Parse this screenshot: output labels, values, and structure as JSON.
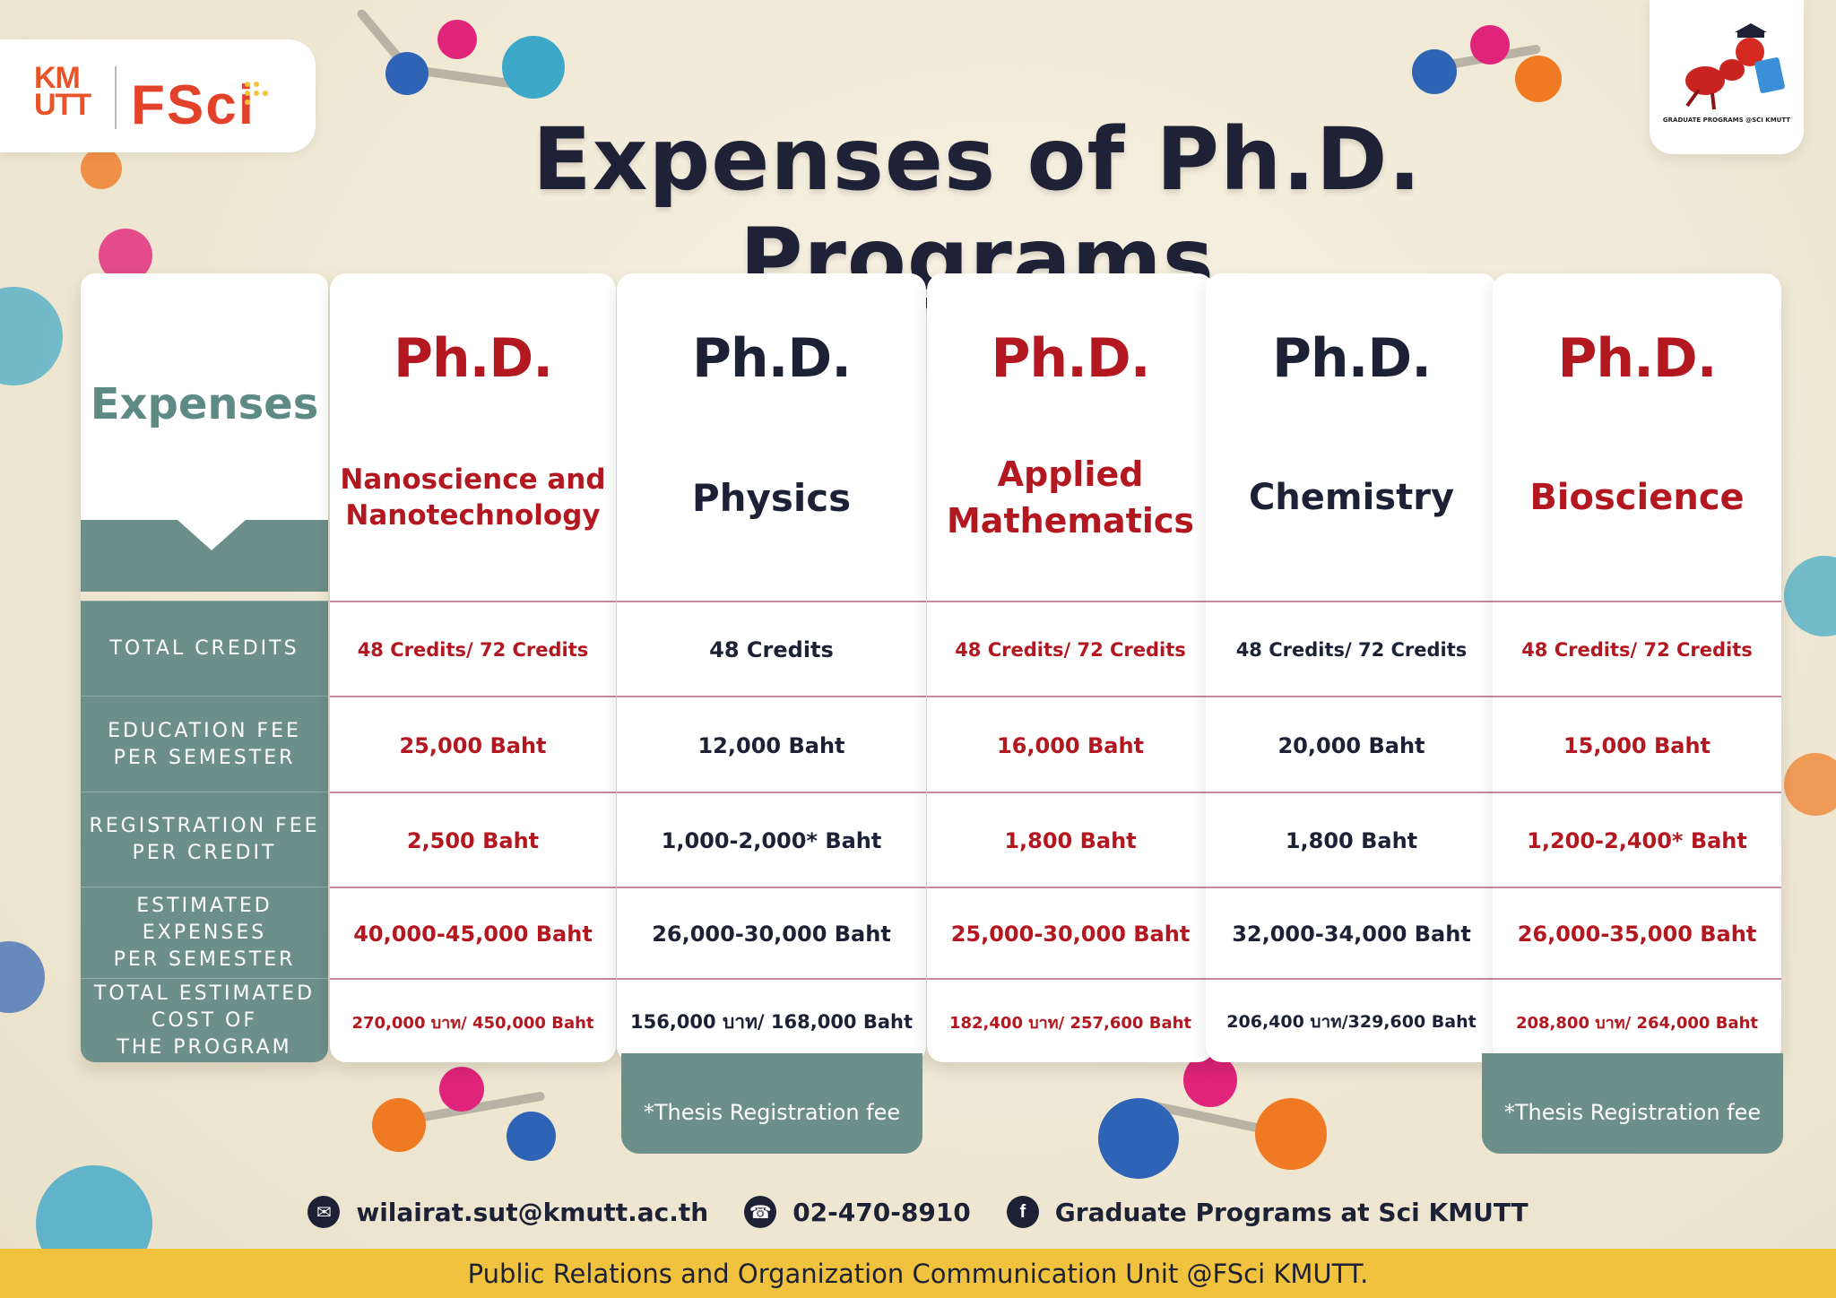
{
  "logos": {
    "kmutt_text": "KM\nUTT",
    "fsci_text": "FSci",
    "badge_text": "GRADUATE PROGRAMS @SCI KMUTT"
  },
  "title": "Expenses of Ph.D. Programs",
  "label_header": "Expenses",
  "row_labels": [
    "TOTAL CREDITS",
    "EDUCATION FEE\nPER SEMESTER",
    "REGISTRATION FEE\nPER CREDIT",
    "ESTIMATED\nEXPENSES\nPER SEMESTER",
    "TOTAL ESTIMATED\nCOST OF\nTHE PROGRAM"
  ],
  "programs": [
    {
      "degree": "Ph.D.",
      "name": "Nanoscience and\nNanotechnology",
      "color": "#b3171f",
      "total_credits": "48 Credits/ 72 Credits",
      "education_fee": "25,000 Baht",
      "registration_fee": "2,500 Baht",
      "estimated_expenses": "40,000-45,000 Baht",
      "total_cost": "270,000 บาท/ 450,000 Baht"
    },
    {
      "degree": "Ph.D.",
      "name": "Physics",
      "color": "#1d2135",
      "total_credits": "48 Credits",
      "education_fee": "12,000 Baht",
      "registration_fee": "1,000-2,000* Baht",
      "estimated_expenses": "26,000-30,000 Baht",
      "total_cost": "156,000 บาท/ 168,000 Baht"
    },
    {
      "degree": "Ph.D.",
      "name": "Applied\nMathematics",
      "color": "#b3171f",
      "total_credits": "48 Credits/ 72 Credits",
      "education_fee": "16,000 Baht",
      "registration_fee": "1,800 Baht",
      "estimated_expenses": "25,000-30,000 Baht",
      "total_cost": "182,400 บาท/ 257,600 Baht"
    },
    {
      "degree": "Ph.D.",
      "name": "Chemistry",
      "color": "#1d2135",
      "total_credits": "48 Credits/ 72 Credits",
      "education_fee": "20,000 Baht",
      "registration_fee": "1,800 Baht",
      "estimated_expenses": "32,000-34,000 Baht",
      "total_cost": "206,400 บาท/329,600 Baht"
    },
    {
      "degree": "Ph.D.",
      "name": "Bioscience",
      "color": "#b3171f",
      "total_credits": "48 Credits/ 72 Credits",
      "education_fee": "15,000 Baht",
      "registration_fee": "1,200-2,400* Baht",
      "estimated_expenses": "26,000-35,000 Baht",
      "total_cost": "208,800 บาท/ 264,000 Baht"
    }
  ],
  "thesis_note": "*Thesis Registration fee",
  "contact": {
    "email_icon": "envelope-icon",
    "email": "wilairat.sut@kmutt.ac.th",
    "phone_icon": "phone-icon",
    "phone": "02-470-8910",
    "facebook_icon": "facebook-icon",
    "facebook": "Graduate Programs at Sci KMUTT"
  },
  "footer": "Public Relations and Organization Communication Unit @FSci KMUTT."
}
